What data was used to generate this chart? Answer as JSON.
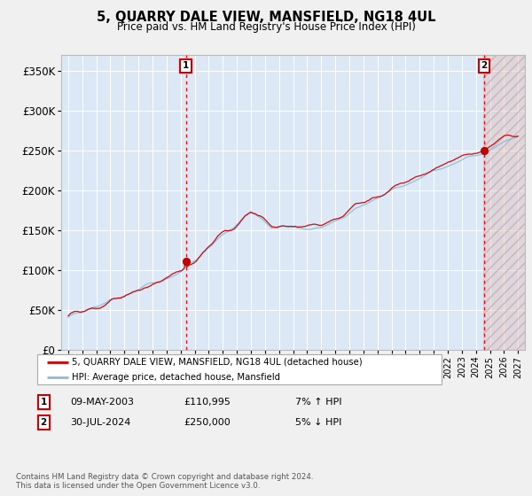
{
  "title": "5, QUARRY DALE VIEW, MANSFIELD, NG18 4UL",
  "subtitle": "Price paid vs. HM Land Registry's House Price Index (HPI)",
  "plot_bg_color": "#dce8f5",
  "fig_bg_color": "#f0f0f0",
  "ylim": [
    0,
    370000
  ],
  "yticks": [
    0,
    50000,
    100000,
    150000,
    200000,
    250000,
    300000,
    350000
  ],
  "ytick_labels": [
    "£0",
    "£50K",
    "£100K",
    "£150K",
    "£200K",
    "£250K",
    "£300K",
    "£350K"
  ],
  "sale1_year": 2003.37,
  "sale1_price": 110995,
  "sale2_year": 2024.58,
  "sale2_price": 250000,
  "sale1_date_str": "09-MAY-2003",
  "sale1_amount_str": "£110,995",
  "sale1_hpi_str": "7% ↑ HPI",
  "sale2_date_str": "30-JUL-2024",
  "sale2_amount_str": "£250,000",
  "sale2_hpi_str": "5% ↓ HPI",
  "legend_label1": "5, QUARRY DALE VIEW, MANSFIELD, NG18 4UL (detached house)",
  "legend_label2": "HPI: Average price, detached house, Mansfield",
  "footnote": "Contains HM Land Registry data © Crown copyright and database right 2024.\nThis data is licensed under the Open Government Licence v3.0.",
  "line_color_red": "#cc0000",
  "line_color_blue": "#88bbdd",
  "xmin": 1994.5,
  "xmax": 2027.5,
  "hatch_start": 2024.5
}
